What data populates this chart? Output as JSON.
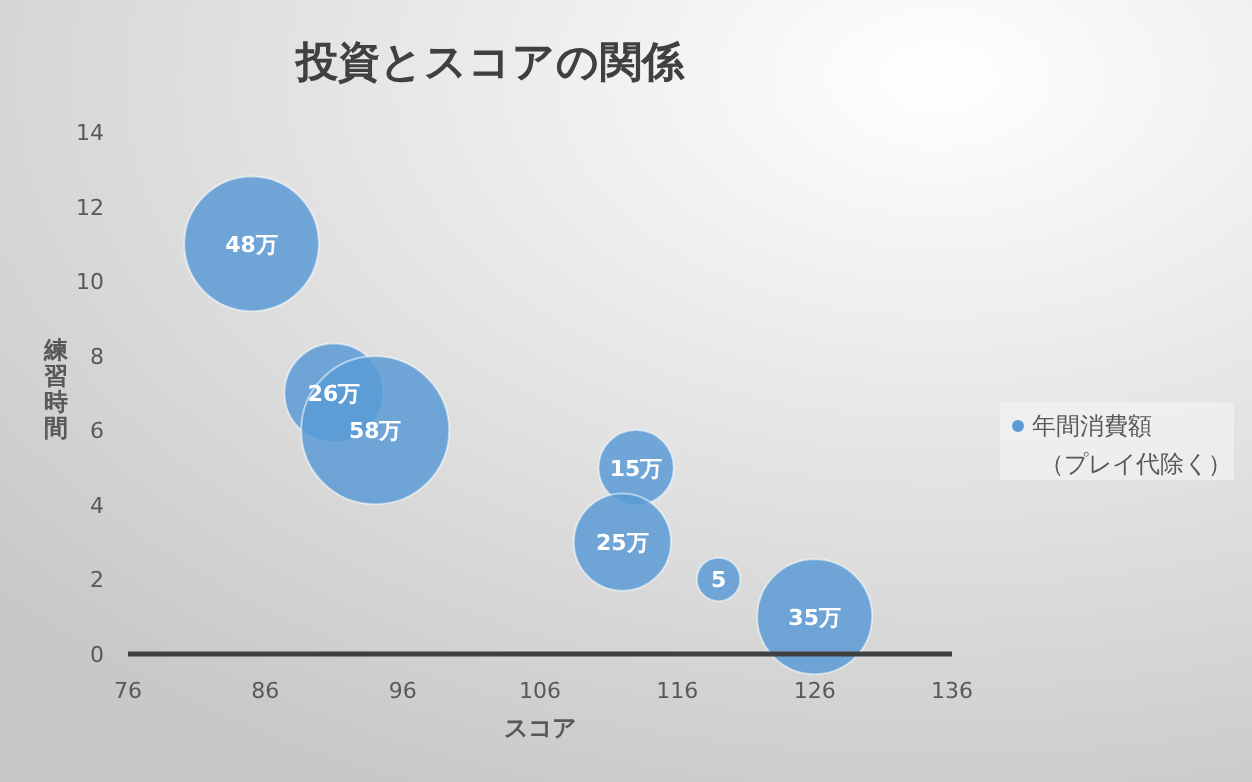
{
  "chart_data": {
    "type": "bubble",
    "title": "投資とスコアの関係",
    "xlabel": "スコア",
    "ylabel": "練習時間",
    "xlim": [
      76,
      136
    ],
    "xticks": [
      76,
      86,
      96,
      106,
      116,
      126,
      136
    ],
    "ylim": [
      0,
      14
    ],
    "yticks": [
      0,
      2,
      4,
      6,
      8,
      10,
      12,
      14
    ],
    "grid": false,
    "legend": "right",
    "series": [
      {
        "name": "年間消費額（プレイ代除く）",
        "color": "#5b9bd5",
        "x": [
          85,
          91,
          94,
          113,
          112,
          119,
          126
        ],
        "values": [
          11,
          7,
          6,
          5,
          3,
          2,
          1
        ],
        "sizes": [
          48,
          26,
          58,
          15,
          25,
          5,
          35
        ],
        "value_labels": [
          "48万",
          "26万",
          "58万",
          "15万",
          "25万",
          "5",
          "35万"
        ]
      }
    ]
  }
}
